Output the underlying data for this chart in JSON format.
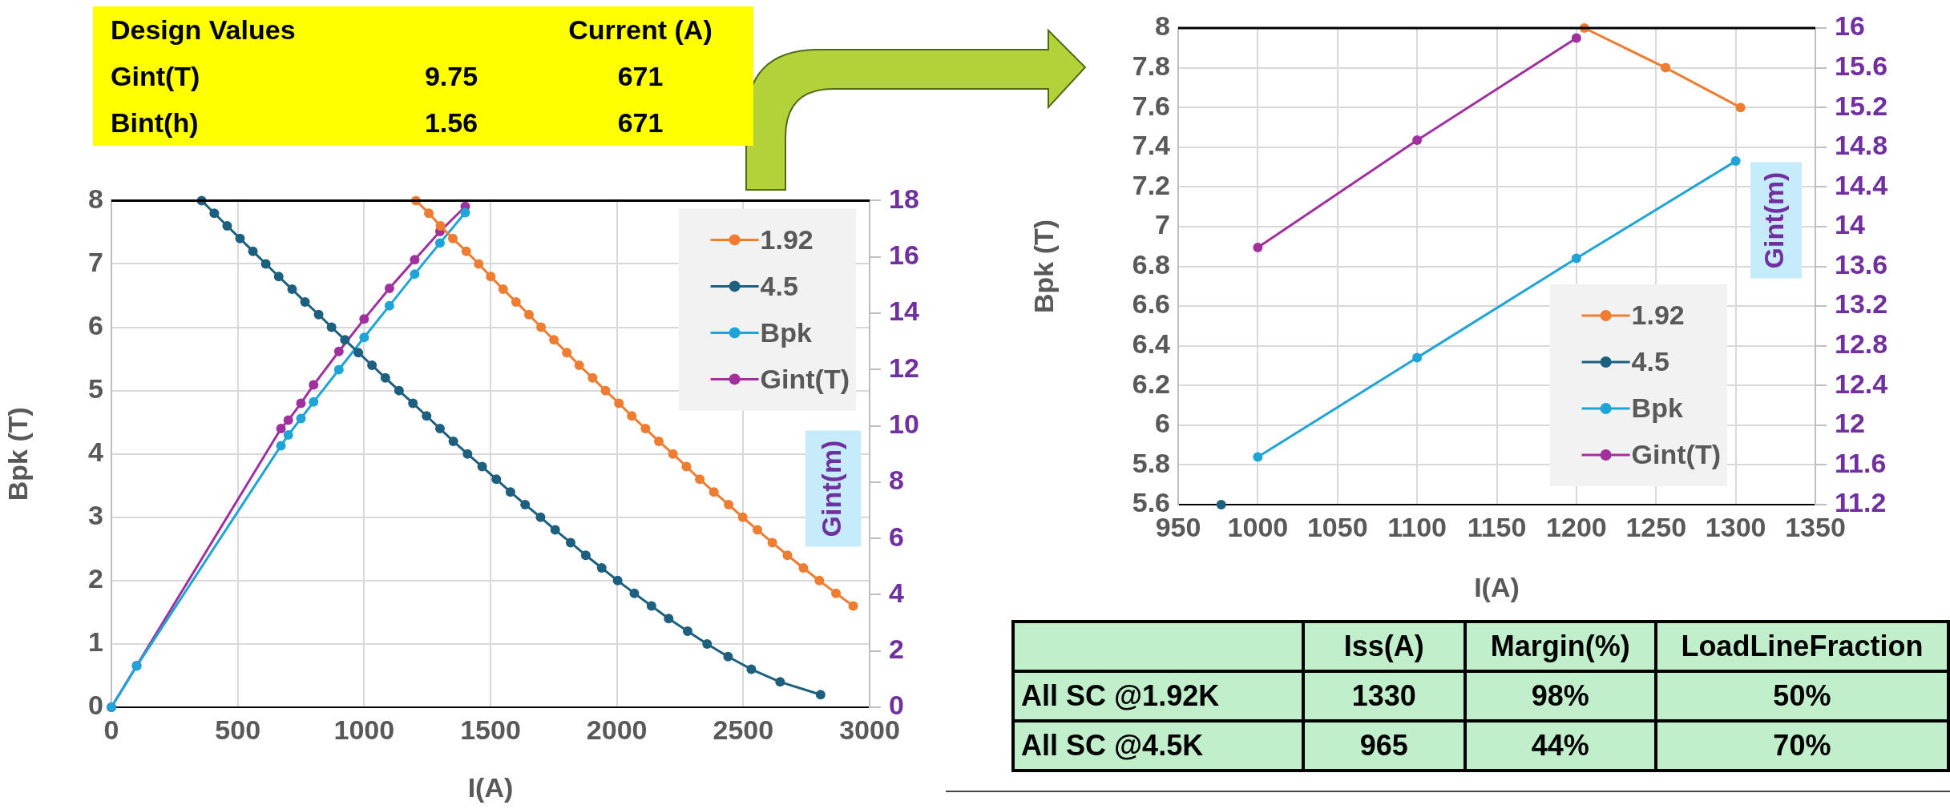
{
  "chart_data": [
    {
      "type": "other",
      "title": "Design Values",
      "categories": [
        null,
        "Current (A)"
      ],
      "y_categories": [
        "Gint(T)",
        "Bint(h)"
      ],
      "cell_labels": [
        [
          "9.75",
          "671"
        ],
        [
          "1.56",
          "671"
        ]
      ]
    },
    {
      "type": "line",
      "xlabel": "I(A)",
      "ylabel": "Bpk (T)",
      "y2label": "Gint(m)",
      "xlim": [
        0,
        3000
      ],
      "xticks": [
        0,
        500,
        1000,
        1500,
        2000,
        2500,
        3000
      ],
      "ylim": [
        0,
        8
      ],
      "yticks": [
        0,
        1,
        2,
        3,
        4,
        5,
        6,
        7,
        8
      ],
      "y2lim": [
        0,
        18
      ],
      "y2ticks": [
        0,
        2,
        4,
        6,
        8,
        10,
        12,
        14,
        16,
        18
      ],
      "grid": true,
      "legend": "top right",
      "marker": "circle",
      "line_style": "solid",
      "series": [
        {
          "name": "1.92",
          "color": "#ee7d31",
          "x": [
            1205,
            1256,
            1302,
            1351,
            1404,
            1453,
            1501,
            1550,
            1601,
            1652,
            1700,
            1751,
            1802,
            1851,
            1904,
            1955,
            2008,
            2059,
            2113,
            2166,
            2222,
            2275,
            2328,
            2384,
            2442,
            2498,
            2556,
            2615,
            2675,
            2738,
            2801,
            2867,
            2935
          ],
          "values": [
            8,
            7.8,
            7.6,
            7.4,
            7.2,
            7,
            6.8,
            6.6,
            6.4,
            6.2,
            6,
            5.8,
            5.6,
            5.4,
            5.2,
            5,
            4.8,
            4.6,
            4.4,
            4.2,
            4,
            3.8,
            3.6,
            3.4,
            3.2,
            3,
            2.8,
            2.6,
            2.4,
            2.2,
            2,
            1.8,
            1.6
          ]
        },
        {
          "name": "4.5",
          "color": "#1d5f7e",
          "x": [
            357,
            407,
            458,
            509,
            560,
            611,
            662,
            715,
            766,
            820,
            871,
            924,
            977,
            1031,
            1084,
            1138,
            1193,
            1247,
            1300,
            1353,
            1409,
            1467,
            1523,
            1579,
            1637,
            1698,
            1756,
            1817,
            1877,
            1940,
            2003,
            2069,
            2137,
            2205,
            2280,
            2357,
            2440,
            2532,
            2646,
            2806
          ],
          "values": [
            8,
            7.8,
            7.6,
            7.4,
            7.2,
            7,
            6.8,
            6.6,
            6.4,
            6.2,
            6,
            5.8,
            5.6,
            5.4,
            5.2,
            5,
            4.8,
            4.6,
            4.4,
            4.2,
            4,
            3.8,
            3.6,
            3.4,
            3.2,
            3,
            2.8,
            2.6,
            2.4,
            2.2,
            2,
            1.8,
            1.6,
            1.4,
            1.2,
            1,
            0.8,
            0.6,
            0.4,
            0.2
          ]
        },
        {
          "name": "Bpk",
          "color": "#1fa4d8",
          "x": [
            0,
            100,
            671,
            700,
            750,
            800,
            900,
            1000,
            1100,
            1200,
            1300,
            1400
          ],
          "values": [
            0,
            0.65,
            4.13,
            4.3,
            4.56,
            4.82,
            5.33,
            5.84,
            6.34,
            6.84,
            7.33,
            7.81
          ]
        },
        {
          "name": "Gint(T)",
          "color": "#a0309e",
          "axis": "y2",
          "x": [
            0,
            100,
            671,
            700,
            750,
            800,
            900,
            1000,
            1100,
            1200,
            1300,
            1400
          ],
          "values": [
            0,
            1.48,
            9.9,
            10.2,
            10.8,
            11.45,
            12.64,
            13.79,
            14.88,
            15.9,
            16.9,
            17.79
          ]
        }
      ]
    },
    {
      "type": "line",
      "xlabel": "I(A)",
      "ylabel": "Bpk (T)",
      "y2label": "Gint(m)",
      "xlim": [
        950,
        1350
      ],
      "xticks": [
        950,
        1000,
        1050,
        1100,
        1150,
        1200,
        1250,
        1300,
        1350
      ],
      "ylim": [
        5.6,
        8
      ],
      "yticks": [
        5.6,
        5.8,
        6,
        6.2,
        6.4,
        6.6,
        6.8,
        7,
        7.2,
        7.4,
        7.6,
        7.8,
        8
      ],
      "y2lim": [
        11.2,
        16
      ],
      "y2ticks": [
        11.2,
        11.6,
        12,
        12.4,
        12.8,
        13.2,
        13.6,
        14,
        14.4,
        14.8,
        15.2,
        15.6,
        16
      ],
      "grid": true,
      "legend": "bottom right",
      "marker": "circle",
      "line_style": "solid",
      "series": [
        {
          "name": "1.92",
          "color": "#ee7d31",
          "x": [
            1205,
            1256,
            1303
          ],
          "values": [
            8,
            7.8,
            7.6
          ]
        },
        {
          "name": "4.5",
          "color": "#1d5f7e",
          "x": [
            977
          ],
          "values": [
            5.6
          ]
        },
        {
          "name": "Bpk",
          "color": "#1fa4d8",
          "x": [
            1000,
            1100,
            1200,
            1300
          ],
          "values": [
            5.84,
            6.34,
            6.84,
            7.33
          ]
        },
        {
          "name": "Gint(T)",
          "color": "#a0309e",
          "axis": "y2",
          "x": [
            1000,
            1100,
            1200
          ],
          "values": [
            13.79,
            14.87,
            15.9
          ]
        }
      ]
    },
    {
      "type": "other",
      "categories": [
        "Iss(A)",
        "Margin(%)",
        "LoadLineFraction"
      ],
      "y_categories": [
        "All SC @1.92K",
        "All SC @4.5K"
      ],
      "cell_labels": [
        [
          "1330",
          "98%",
          "50%"
        ],
        [
          "965",
          "44%",
          "70%"
        ]
      ]
    }
  ]
}
